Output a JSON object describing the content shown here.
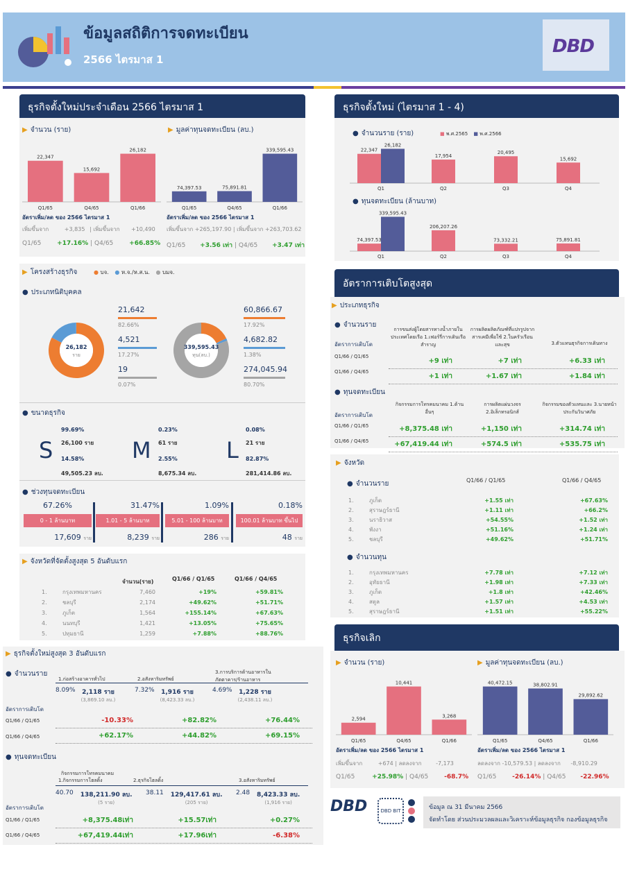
{
  "header": {
    "title": "ข้อมูลสถิติการจดทะเบียน",
    "subtitle": "2566 ไตรมาส 1",
    "logo": "DBD"
  },
  "monthly": {
    "title": "ธุรกิจตั้งใหม่ประจำเดือน  2566 ไตรมาส 1",
    "count_label": "จำนวน (ราย)",
    "capital_label": "มูลค่าทุนจดทะเบียน (ลบ.)",
    "chart_data": [
      {
        "type": "bar",
        "categories": [
          "Q1/65",
          "Q4/65",
          "Q1/66"
        ],
        "values": [
          22347,
          15692,
          26182
        ],
        "value_labels": [
          "22,347",
          "15,692",
          "26,182"
        ]
      },
      {
        "type": "bar",
        "categories": [
          "Q1/65",
          "Q4/65",
          "Q1/66"
        ],
        "values": [
          74397.53,
          75891.81,
          339595.43
        ],
        "value_labels": [
          "74,397.53",
          "75,891.81",
          "339,595.43"
        ]
      }
    ],
    "rate_label": "อัตราเพิ่ม/ลด ของ 2566 ไตรมาส 1",
    "inc_label": "เพิ่มขึ้นจาก",
    "count_inc1": "+3,835",
    "count_inc2": "+10,490",
    "count_q1": "Q1/65",
    "count_r1": "+17.16%",
    "count_q2": "Q4/65",
    "count_r2": "+66.85%",
    "cap_inc1": "+265,197.90",
    "cap_inc2": "+263,703.62",
    "cap_q1": "Q1/65",
    "cap_r1": "+3.56 เท่า",
    "cap_q2": "Q4/65",
    "cap_r2": "+3.47 เท่า"
  },
  "structure": {
    "title": "โครงสร้างธุรกิจ",
    "legend": [
      "บจ.",
      "ห.จ./ห.ส.น.",
      "บมจ."
    ],
    "juristic_label": "ประเภทนิติบุคคล",
    "donut1": {
      "center_value": "26,182",
      "center_unit": "ราย",
      "values": [
        82.66,
        17.27,
        0.07
      ]
    },
    "donut1_items": [
      {
        "value": "21,642",
        "pct": "82.66%"
      },
      {
        "value": "4,521",
        "pct": "17.27%"
      },
      {
        "value": "19",
        "pct": "0.07%"
      }
    ],
    "donut2": {
      "center_value": "339,595.43",
      "center_unit": "ทุน(ลบ.)",
      "values": [
        17.92,
        1.38,
        80.7
      ]
    },
    "donut2_items": [
      {
        "value": "60,866.67",
        "pct": "17.92%"
      },
      {
        "value": "4,682.82",
        "pct": "1.38%"
      },
      {
        "value": "274,045.94",
        "pct": "80.70%"
      }
    ],
    "size_label": "ขนาดธุรกิจ",
    "sizes": [
      {
        "letter": "S",
        "pct1": "99.69%",
        "count": "26,100 ราย",
        "pct2": "14.58%",
        "capital": "49,505.23 ลบ."
      },
      {
        "letter": "M",
        "pct1": "0.23%",
        "count": "61 ราย",
        "pct2": "2.55%",
        "capital": "8,675.34 ลบ."
      },
      {
        "letter": "L",
        "pct1": "0.08%",
        "count": "21 ราย",
        "pct2": "82.87%",
        "capital": "281,414.86 ลบ."
      }
    ],
    "range_label": "ช่วงทุนจดทะเบียน",
    "ranges": [
      {
        "pct": "67.26%",
        "label": "0 - 1 ล้านบาท",
        "count": "17,609",
        "unit": "ราย"
      },
      {
        "pct": "31.47%",
        "label": "1.01 - 5 ล้านบาท",
        "count": "8,239",
        "unit": "ราย"
      },
      {
        "pct": "1.09%",
        "label": "5.01 - 100 ล้านบาท",
        "count": "286",
        "unit": "ราย"
      },
      {
        "pct": "0.18%",
        "label": "100.01 ล้านบาท ขึ้นไป",
        "count": "48",
        "unit": "ราย"
      }
    ]
  },
  "top_provinces": {
    "title": "จังหวัดที่จัดตั้งสูงสุด 5 อันดับแรก",
    "headers": [
      "จำนวน(ราย)",
      "Q1/66  /  Q1/65",
      "Q1/66  /  Q4/65"
    ],
    "rows": [
      {
        "no": "1.",
        "name": "กรุงเทพมหานคร",
        "count": "7,460",
        "r1": "+19%",
        "r2": "+59.81%"
      },
      {
        "no": "2.",
        "name": "ชลบุรี",
        "count": "2,174",
        "r1": "+49.62%",
        "r2": "+51.71%"
      },
      {
        "no": "3.",
        "name": "ภูเก็ต",
        "count": "1,564",
        "r1": "+155.14%",
        "r2": "+67.63%"
      },
      {
        "no": "4.",
        "name": "นนทบุรี",
        "count": "1,421",
        "r1": "+13.05%",
        "r2": "+75.65%"
      },
      {
        "no": "5.",
        "name": "ปทุมธานี",
        "count": "1,259",
        "r1": "+7.88%",
        "r2": "+88.76%"
      }
    ]
  },
  "top3": {
    "title": "ธุรกิจตั้งใหม่สูงสุด 3 อันดับแรก",
    "count_label": "จำนวนราย",
    "count_types": [
      "1.ก่อสร้างอาคารทั่วไป",
      "2.อสังหาริมทรัพย์",
      "3.การบริการด้านอาหารในภัตตาคาร/ร้านอาหาร"
    ],
    "count_vals": [
      {
        "pct": "8.09%",
        "v": "2,118  ราย",
        "sub": "(3,869.10 ลบ.)"
      },
      {
        "pct": "7.32%",
        "v": "1,916  ราย",
        "sub": "(8,423.33 ลบ.)"
      },
      {
        "pct": "4.69%",
        "v": "1,228  ราย",
        "sub": "(2,438.11 ลบ.)"
      }
    ],
    "growth_label": "อัตราการเติบโต",
    "q1": "Q1/66  /  Q1/65",
    "q2": "Q1/66  /  Q4/65",
    "count_g1": [
      "-10.33%",
      "+82.82%",
      "+76.44%"
    ],
    "count_g2": [
      "+62.17%",
      "+44.82%",
      "+69.15%"
    ],
    "cap_label": "ทุนจดทะเบียน",
    "cap_types": [
      "1.กิจกรรมการโฮลดิ้ง",
      "2.ธุรกิจโฮลดิ้ง",
      "3.อสังหาริมทรัพย์"
    ],
    "cap_type_pre": "กิจกรรมการโทรคมนาคม",
    "cap_vals": [
      {
        "pct": "40.70",
        "v": "138,211.90 ลบ.",
        "sub": "(5 ราย)"
      },
      {
        "pct": "38.11",
        "v": "129,417.61 ลบ.",
        "sub": "(205 ราย)"
      },
      {
        "pct": "2.48",
        "v": "8,423.33  ลบ.",
        "sub": "(1,916 ราย)"
      }
    ],
    "cap_g1": [
      "+8,375.48เท่า",
      "+15.57เท่า",
      "+0.27%"
    ],
    "cap_g2": [
      "+67,419.44เท่า",
      "+17.96เท่า",
      "-6.38%"
    ]
  },
  "quarters": {
    "title": "ธุรกิจตั้งใหม่ (ไตรมาส 1 - 4)",
    "count_label": "จำนวนราย (ราย)",
    "legend": [
      "พ.ศ.2565",
      "พ.ศ.2566"
    ],
    "cap_label": "ทุนจดทะเบียน (ล้านบาท)",
    "chart_data": [
      {
        "type": "bar",
        "categories": [
          "Q1",
          "Q2",
          "Q3",
          "Q4"
        ],
        "series": [
          {
            "name": "พ.ศ.2565",
            "values": [
              22347,
              17954,
              20495,
              15692
            ],
            "labels": [
              "22,347",
              "17,954",
              "20,495",
              "15,692"
            ]
          },
          {
            "name": "พ.ศ.2566",
            "values": [
              26182,
              null,
              null,
              null
            ],
            "labels": [
              "26,182",
              "",
              "",
              ""
            ]
          }
        ]
      },
      {
        "type": "bar",
        "categories": [
          "Q1",
          "Q2",
          "Q3",
          "Q4"
        ],
        "series": [
          {
            "name": "พ.ศ.2565",
            "values": [
              74397.53,
              206207.26,
              73332.21,
              75891.81
            ],
            "labels": [
              "74,397.53",
              "206,207.26",
              "73,332.21",
              "75,891.81"
            ]
          },
          {
            "name": "พ.ศ.2566",
            "values": [
              339595.43,
              null,
              null,
              null
            ],
            "labels": [
              "339,595.43",
              "",
              "",
              ""
            ]
          }
        ]
      }
    ]
  },
  "growth": {
    "title": "อัตราการเติบโตสูงสุด",
    "type_label": "ประเภทธุรกิจ",
    "count_label": "จำนวนราย",
    "rate_label": "อัตราการเติบโต",
    "count_types": [
      "การขนส่งผู้โดยสารทางน้ำภายในประเทศโดยเรือ 1.เฟอร์รี่การเดินเรือสำราญ",
      "การผลิตผลิตภัณฑ์ที่แปรรูปจากสารเคมีเพื่อใช้ 2.ในครัวเรือนและสุข",
      "3.ตัวแทนธุรกิจการเดินทาง"
    ],
    "q1": "Q1/66  /  Q1/65",
    "q2": "Q1/66  /  Q4/65",
    "count_g1": [
      "+9 เท่า",
      "+7 เท่า",
      "+6.33 เท่า"
    ],
    "count_g2": [
      "+1 เท่า",
      "+1.67 เท่า",
      "+1.84 เท่า"
    ],
    "cap_label": "ทุนจดทะเบียน",
    "cap_types": [
      "กิจกรรมการโทรคมนาคม 1.ด้านอื่นๆ",
      "การผลิตแผ่นวงจร 2.อิเล็กทรอนิกส์",
      "กิจกรรมของตัวแทนและ 3.นายหน้าประกันวินาศภัย"
    ],
    "cap_g1": [
      "+8,375.48 เท่า",
      "+1,150 เท่า",
      "+314.74 เท่า"
    ],
    "cap_g2": [
      "+67,419.44 เท่า",
      "+574.5 เท่า",
      "+535.75 เท่า"
    ]
  },
  "province": {
    "title": "จังหวัด",
    "count_label": "จำนวนราย",
    "h1": "Q1/66  /  Q1/65",
    "h2": "Q1/66  /  Q4/65",
    "count_rows": [
      {
        "no": "1.",
        "name": "ภูเก็ต",
        "r1": "+1.55 เท่า",
        "r2": "+67.63%"
      },
      {
        "no": "2.",
        "name": "สุราษฎร์ธานี",
        "r1": "+1.11 เท่า",
        "r2": "+66.2%"
      },
      {
        "no": "3.",
        "name": "นราธิวาส",
        "r1": "+54.55%",
        "r2": "+1.52 เท่า"
      },
      {
        "no": "4.",
        "name": "พังงา",
        "r1": "+51.16%",
        "r2": "+1.24 เท่า"
      },
      {
        "no": "5.",
        "name": "ชลบุรี",
        "r1": "+49.62%",
        "r2": "+51.71%"
      }
    ],
    "cap_label": "จำนวนทุน",
    "cap_rows": [
      {
        "no": "1.",
        "name": "กรุงเทพมหานคร",
        "r1": "+7.78 เท่า",
        "r2": "+7.12 เท่า"
      },
      {
        "no": "2.",
        "name": "อุทัยธานี",
        "r1": "+1.98 เท่า",
        "r2": "+7.33 เท่า"
      },
      {
        "no": "3.",
        "name": "ภูเก็ต",
        "r1": "+1.8 เท่า",
        "r2": "+42.46%"
      },
      {
        "no": "4.",
        "name": "สตูล",
        "r1": "+1.57 เท่า",
        "r2": "+4.53 เท่า"
      },
      {
        "no": "5.",
        "name": "สุราษฎร์ธานี",
        "r1": "+1.51 เท่า",
        "r2": "+55.22%"
      }
    ]
  },
  "closed": {
    "title": "ธุรกิจเลิก",
    "count_label": "จำนวน (ราย)",
    "capital_label": "มูลค่าทุนจดทะเบียน (ลบ.)",
    "chart_data": [
      {
        "type": "bar",
        "categories": [
          "Q1/65",
          "Q4/65",
          "Q1/66"
        ],
        "values": [
          2594,
          10441,
          3268
        ],
        "value_labels": [
          "2,594",
          "10,441",
          "3,268"
        ]
      },
      {
        "type": "bar",
        "categories": [
          "Q1/65",
          "Q4/65",
          "Q1/66"
        ],
        "values": [
          40472.15,
          38802.91,
          29892.62
        ],
        "value_labels": [
          "40,472.15",
          "38,802.91",
          "29,892.62"
        ]
      }
    ],
    "rate_label": "อัตราเพิ่ม/ลด ของ 2566 ไตรมาส 1",
    "inc_label": "เพิ่มขึ้นจาก",
    "dec_label": "ลดลงจาก",
    "count_inc": "+674",
    "count_dec": "-7,173",
    "count_q1": "Q1/65",
    "count_r1": "+25.98%",
    "count_q2": "Q4/65",
    "count_r2": "-68.7%",
    "cap_dec1": "-10,579.53",
    "cap_dec2": "-8,910.29",
    "cap_q1": "Q1/65",
    "cap_r1": "-26.14%",
    "cap_q2": "Q4/65",
    "cap_r2": "-22.96%"
  },
  "footer": {
    "logo": "DBD",
    "bit": "DBD BIT",
    "date": "ข้อมูล ณ    31 มีนาคม 2566",
    "credit": "จัดทำโดย ส่วนประมวลผลและวิเคราะห์ข้อมูลธุรกิจ กองข้อมูลธุรกิจ"
  },
  "colors": {
    "navy": "#1f3864",
    "pink": "#e5707f",
    "blue": "#535c99",
    "orange": "#ed7d31",
    "lightblue": "#5b9bd5",
    "grey": "#a5a5a5",
    "green": "#2e9e2e",
    "red": "#d12a2a"
  }
}
